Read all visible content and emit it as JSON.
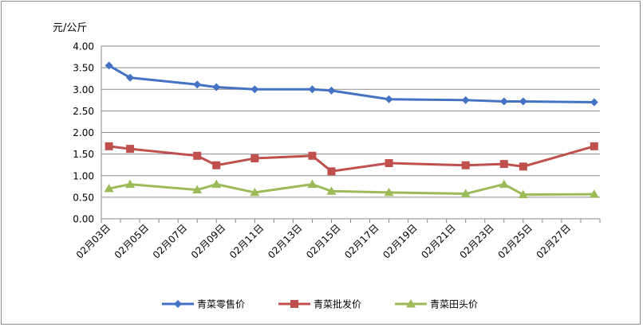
{
  "chart_data": {
    "type": "line",
    "ylabel": "元/公斤",
    "ylim": [
      0,
      4
    ],
    "y_ticks": [
      "0.00",
      "0.50",
      "1.00",
      "1.50",
      "2.00",
      "2.50",
      "3.00",
      "3.50",
      "4.00"
    ],
    "x_range": [
      3,
      29
    ],
    "x_ticks": [
      "02月03日",
      "02月05日",
      "02月07日",
      "02月09日",
      "02月11日",
      "02月13日",
      "02月15日",
      "02月17日",
      "02月19日",
      "02月21日",
      "02月23日",
      "02月25日",
      "02月27日"
    ],
    "x_tick_days": [
      3,
      5,
      7,
      9,
      11,
      13,
      15,
      17,
      19,
      21,
      23,
      25,
      27
    ],
    "grid": "horizontal",
    "legend_position": "bottom",
    "series": [
      {
        "name": "青菜零售价",
        "color": "#4472C4",
        "marker": "diamond",
        "points": [
          {
            "day": 3.4,
            "value": 3.55
          },
          {
            "day": 4.5,
            "value": 3.27
          },
          {
            "day": 8.0,
            "value": 3.11
          },
          {
            "day": 9.0,
            "value": 3.05
          },
          {
            "day": 11.0,
            "value": 3.0
          },
          {
            "day": 14.0,
            "value": 3.0
          },
          {
            "day": 15.0,
            "value": 2.97
          },
          {
            "day": 18.0,
            "value": 2.77
          },
          {
            "day": 22.0,
            "value": 2.75
          },
          {
            "day": 24.0,
            "value": 2.72
          },
          {
            "day": 25.0,
            "value": 2.72
          },
          {
            "day": 28.7,
            "value": 2.7
          }
        ]
      },
      {
        "name": "青菜批发价",
        "color": "#C0504D",
        "marker": "square",
        "points": [
          {
            "day": 3.4,
            "value": 1.68
          },
          {
            "day": 4.5,
            "value": 1.62
          },
          {
            "day": 8.0,
            "value": 1.46
          },
          {
            "day": 9.0,
            "value": 1.24
          },
          {
            "day": 11.0,
            "value": 1.4
          },
          {
            "day": 14.0,
            "value": 1.46
          },
          {
            "day": 15.0,
            "value": 1.1
          },
          {
            "day": 18.0,
            "value": 1.29
          },
          {
            "day": 22.0,
            "value": 1.24
          },
          {
            "day": 24.0,
            "value": 1.27
          },
          {
            "day": 25.0,
            "value": 1.21
          },
          {
            "day": 28.7,
            "value": 1.68
          }
        ]
      },
      {
        "name": "青菜田头价",
        "color": "#9BBB59",
        "marker": "triangle",
        "points": [
          {
            "day": 3.4,
            "value": 0.7
          },
          {
            "day": 4.5,
            "value": 0.8
          },
          {
            "day": 8.0,
            "value": 0.67
          },
          {
            "day": 9.0,
            "value": 0.8
          },
          {
            "day": 11.0,
            "value": 0.61
          },
          {
            "day": 14.0,
            "value": 0.8
          },
          {
            "day": 15.0,
            "value": 0.64
          },
          {
            "day": 18.0,
            "value": 0.61
          },
          {
            "day": 22.0,
            "value": 0.58
          },
          {
            "day": 24.0,
            "value": 0.8
          },
          {
            "day": 25.0,
            "value": 0.56
          },
          {
            "day": 28.7,
            "value": 0.57
          }
        ]
      }
    ]
  }
}
